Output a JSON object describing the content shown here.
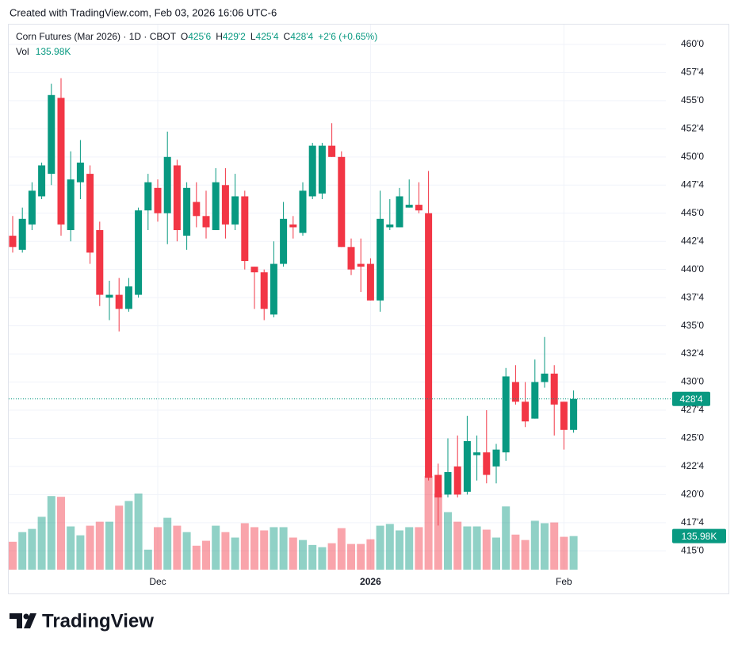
{
  "header": {
    "text": "Created with TradingView.com, Feb 03, 2026 16:06 UTC-6"
  },
  "footer": {
    "brand": "TradingView"
  },
  "chart_data": {
    "type": "candlestick",
    "legend": {
      "title": "Corn Futures (Mar 2026) · 1D · CBOT",
      "items": [
        {
          "key": "O",
          "value": "425'6"
        },
        {
          "key": "H",
          "value": "429'2"
        },
        {
          "key": "L",
          "value": "425'4"
        },
        {
          "key": "C",
          "value": "428'4"
        }
      ],
      "change": "+2'6 (+0.65%)"
    },
    "categories": [
      null,
      null,
      null,
      null,
      null,
      null,
      null,
      null,
      null,
      null,
      null,
      null,
      null,
      null,
      null,
      "Dec",
      null,
      null,
      null,
      null,
      null,
      null,
      null,
      null,
      null,
      null,
      null,
      null,
      null,
      null,
      null,
      null,
      null,
      null,
      null,
      null,
      null,
      "2026",
      null,
      null,
      null,
      null,
      null,
      null,
      null,
      null,
      null,
      null,
      null,
      null,
      null,
      null,
      null,
      null,
      null,
      null,
      null,
      "Feb",
      null
    ],
    "open": [
      443.0,
      441.75,
      444.0,
      446.5,
      448.5,
      455.25,
      443.5,
      447.75,
      448.5,
      443.5,
      437.5,
      437.75,
      436.5,
      437.75,
      445.25,
      447.25,
      445.0,
      449.25,
      443.0,
      446.0,
      444.75,
      443.5,
      447.5,
      444.0,
      446.5,
      440.25,
      439.75,
      436.0,
      440.5,
      444.0,
      443.25,
      446.5,
      446.75,
      451.0,
      450.0,
      442.0,
      440.5,
      440.5,
      437.25,
      443.75,
      443.75,
      445.5,
      445.75,
      445.0,
      421.75,
      420.0,
      422.5,
      420.25,
      423.5,
      423.75,
      422.5,
      423.75,
      430.0,
      428.25,
      426.75,
      430.0,
      430.75,
      428.25,
      425.75
    ],
    "high": [
      444.75,
      445.5,
      447.75,
      449.5,
      456.5,
      457.0,
      450.5,
      451.5,
      449.25,
      444.25,
      439.0,
      439.25,
      439.25,
      445.5,
      448.5,
      448.0,
      452.25,
      449.75,
      447.75,
      447.75,
      447.0,
      449.0,
      449.0,
      448.5,
      447.0,
      440.25,
      440.0,
      442.5,
      446.0,
      444.75,
      447.75,
      451.25,
      451.25,
      453.0,
      450.5,
      442.75,
      442.75,
      441.0,
      447.0,
      446.25,
      447.25,
      448.0,
      447.75,
      448.75,
      422.75,
      425.0,
      425.25,
      427.0,
      425.25,
      427.5,
      424.5,
      431.25,
      431.5,
      430.0,
      432.0,
      434.0,
      431.5,
      428.25,
      429.25
    ],
    "low": [
      441.5,
      441.5,
      443.5,
      446.25,
      447.5,
      443.0,
      442.5,
      446.25,
      440.5,
      436.75,
      435.5,
      434.5,
      436.25,
      437.5,
      443.5,
      444.25,
      442.25,
      442.5,
      441.75,
      443.75,
      442.75,
      443.5,
      442.75,
      443.5,
      440.0,
      436.5,
      435.5,
      435.75,
      440.25,
      442.75,
      443.0,
      446.25,
      446.25,
      450.0,
      442.0,
      439.5,
      438.0,
      437.25,
      436.25,
      443.5,
      443.75,
      445.5,
      445.0,
      421.25,
      417.25,
      419.75,
      419.75,
      420.0,
      421.25,
      421.0,
      421.0,
      423.0,
      428.0,
      426.0,
      426.75,
      429.5,
      425.25,
      424.0,
      425.5
    ],
    "close": [
      442.0,
      444.5,
      447.0,
      449.25,
      455.5,
      444.0,
      448.0,
      449.5,
      441.5,
      437.75,
      437.75,
      436.5,
      438.5,
      445.25,
      447.75,
      445.0,
      450.0,
      443.5,
      447.25,
      444.75,
      443.75,
      447.75,
      444.0,
      446.5,
      440.75,
      439.75,
      436.5,
      440.5,
      444.5,
      443.75,
      447.0,
      451.0,
      451.0,
      450.0,
      442.0,
      440.0,
      440.25,
      437.25,
      444.5,
      444.0,
      446.5,
      445.75,
      445.25,
      421.5,
      419.75,
      422.0,
      420.0,
      424.75,
      423.75,
      421.75,
      424.0,
      430.5,
      428.25,
      426.5,
      430.0,
      430.75,
      428.0,
      425.75,
      428.5
    ],
    "last_price_label": "428'4",
    "volume": {
      "name": "Vol",
      "last_label": "135.98K",
      "values": [
        113,
        152,
        165,
        214,
        298,
        295,
        175,
        139,
        178,
        194,
        194,
        259,
        278,
        308,
        81,
        172,
        210,
        178,
        152,
        97,
        117,
        178,
        152,
        130,
        188,
        172,
        159,
        172,
        172,
        130,
        120,
        100,
        91,
        107,
        168,
        104,
        104,
        123,
        178,
        185,
        159,
        172,
        172,
        379,
        308,
        233,
        194,
        175,
        175,
        162,
        130,
        256,
        142,
        120,
        198,
        188,
        191,
        133,
        135.98
      ]
    },
    "up_color": "#089981",
    "down_color": "#f23645",
    "ylim": [
      413.33,
      461.83
    ],
    "yticks": [
      {
        "value": 415,
        "label": "415'0"
      },
      {
        "value": 417.5,
        "label": "417'4"
      },
      {
        "value": 420,
        "label": "420'0"
      },
      {
        "value": 422.5,
        "label": "422'4"
      },
      {
        "value": 425,
        "label": "425'0"
      },
      {
        "value": 427.5,
        "label": "427'4"
      },
      {
        "value": 430,
        "label": "430'0"
      },
      {
        "value": 432.5,
        "label": "432'4"
      },
      {
        "value": 435,
        "label": "435'0"
      },
      {
        "value": 437.5,
        "label": "437'4"
      },
      {
        "value": 440,
        "label": "440'0"
      },
      {
        "value": 442.5,
        "label": "442'4"
      },
      {
        "value": 445,
        "label": "445'0"
      },
      {
        "value": 447.5,
        "label": "447'4"
      },
      {
        "value": 450,
        "label": "450'0"
      },
      {
        "value": 452.5,
        "label": "452'4"
      },
      {
        "value": 455,
        "label": "455'0"
      },
      {
        "value": 457.5,
        "label": "457'4"
      },
      {
        "value": 460,
        "label": "460'0"
      }
    ],
    "grid": true
  }
}
